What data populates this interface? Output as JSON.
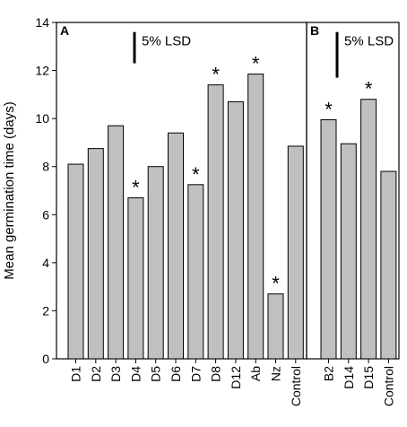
{
  "chart_data": {
    "type": "bar",
    "ylabel": "Mean germination time (days)",
    "ylim": [
      0,
      14
    ],
    "yticks": [
      0,
      2,
      4,
      6,
      8,
      10,
      12,
      14
    ],
    "bar_color": "#c0c0c0",
    "panels": [
      {
        "label": "A",
        "lsd_label": "5% LSD",
        "lsd_value": 1.3,
        "categories": [
          "D1",
          "D2",
          "D3",
          "D4",
          "D5",
          "D6",
          "D7",
          "D8",
          "D12",
          "Ab",
          "Nz",
          "Control"
        ],
        "values": [
          8.1,
          8.75,
          9.7,
          6.7,
          8.0,
          9.4,
          7.25,
          11.4,
          10.7,
          11.85,
          2.7,
          8.85
        ],
        "significant": [
          false,
          false,
          false,
          true,
          false,
          false,
          true,
          true,
          false,
          true,
          true,
          false
        ]
      },
      {
        "label": "B",
        "lsd_label": "5% LSD",
        "lsd_value": 1.9,
        "categories": [
          "B2",
          "D14",
          "D15",
          "Control"
        ],
        "values": [
          9.95,
          8.95,
          10.8,
          7.8
        ],
        "significant": [
          true,
          false,
          true,
          false
        ]
      }
    ]
  }
}
